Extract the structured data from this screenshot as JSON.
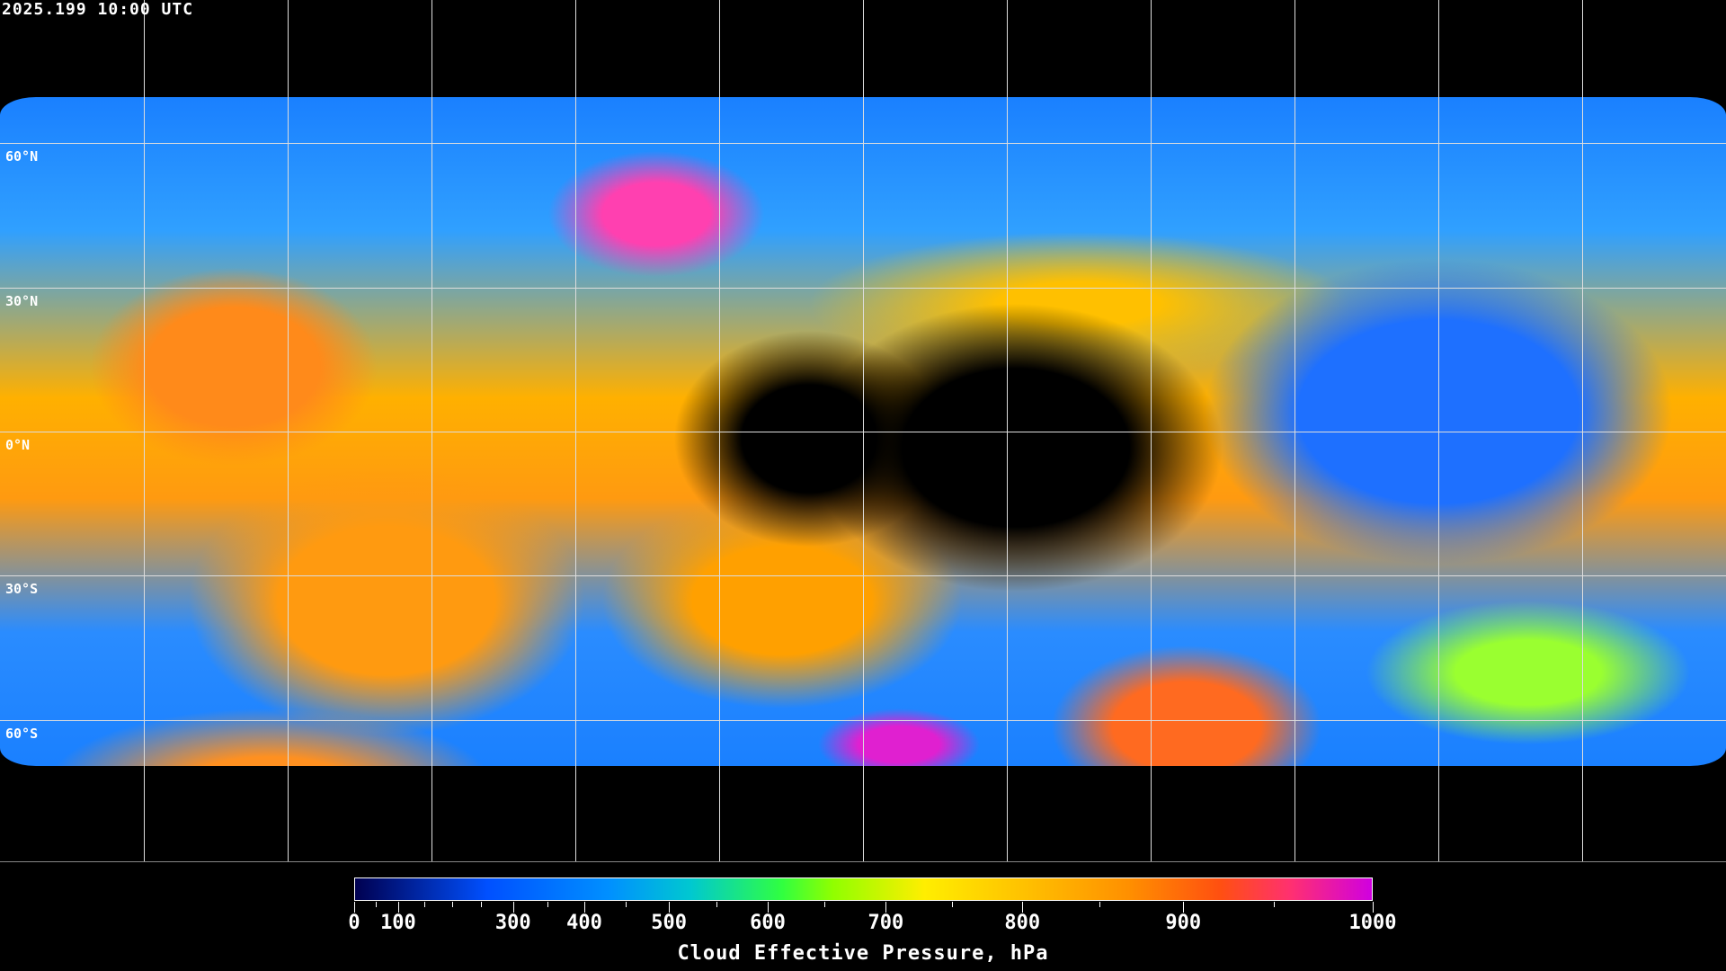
{
  "header": {
    "timestamp": "2025.199 10:00 UTC"
  },
  "map": {
    "projection": "equirectangular",
    "graticule_spacing_deg": 30,
    "latitude_labels": [
      "60°N",
      "30°N",
      "0°N",
      "30°S",
      "60°S"
    ],
    "coastlines_color": "#ffffff",
    "background_color": "#000000"
  },
  "colorbar": {
    "title": "Cloud Effective Pressure, hPa",
    "range": [
      0,
      1000
    ],
    "tick_labels": [
      "0",
      "100",
      "300",
      "400",
      "500",
      "600",
      "700",
      "800",
      "900",
      "1000"
    ],
    "colors": [
      "#000050",
      "#0050ff",
      "#0090ff",
      "#00c8d0",
      "#30ff40",
      "#90ff00",
      "#ffee00",
      "#ffc000",
      "#ff9000",
      "#ff5010",
      "#ff3070",
      "#d000e0"
    ]
  }
}
